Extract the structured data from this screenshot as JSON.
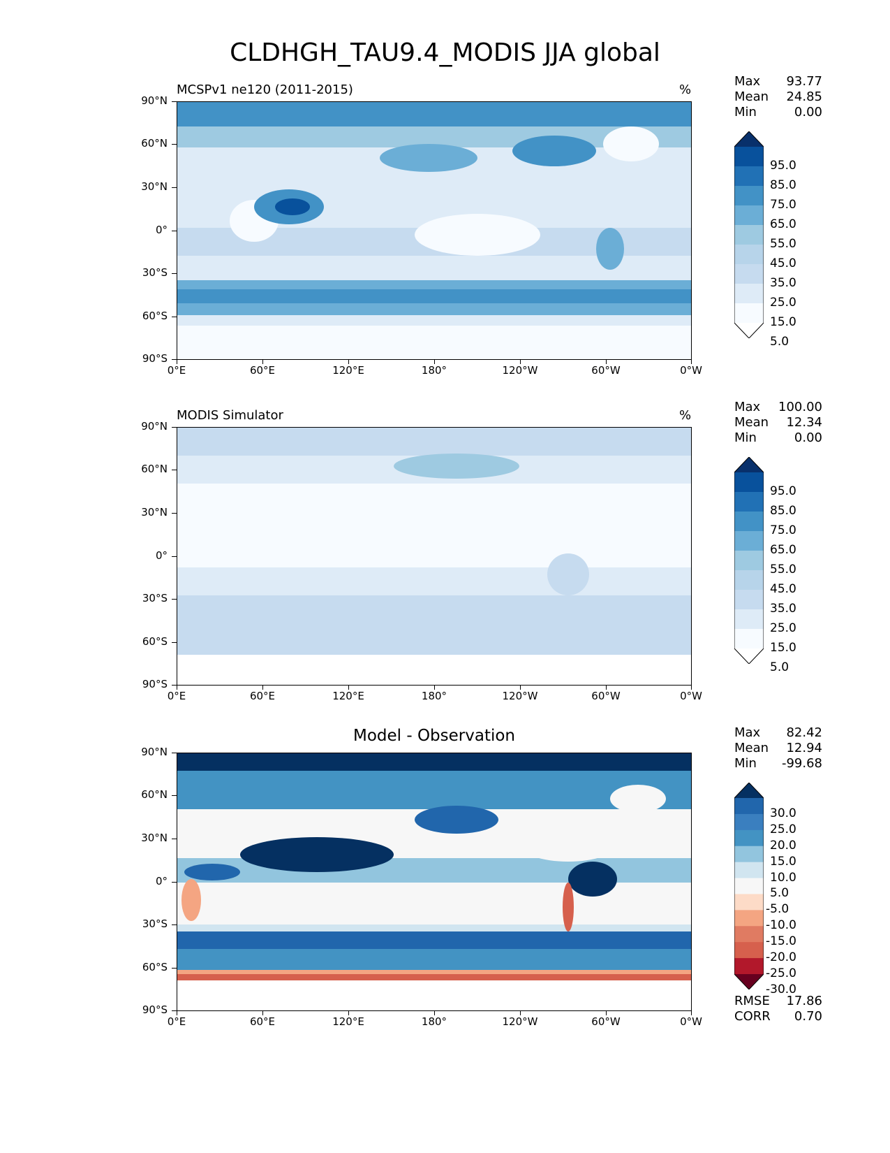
{
  "figure": {
    "title": "CLDHGH_TAU9.4_MODIS JJA global"
  },
  "axes": {
    "lat_labels": [
      "90°N",
      "60°N",
      "30°N",
      "0°",
      "30°S",
      "60°S",
      "90°S"
    ],
    "lon_labels": [
      "0°E",
      "60°E",
      "120°E",
      "180°",
      "120°W",
      "60°W",
      "0°W"
    ]
  },
  "panels": [
    {
      "title": "MCSPv1 ne120 (2011-2015)",
      "units": "%",
      "stats": {
        "max_label": "Max",
        "max": "93.77",
        "mean_label": "Mean",
        "mean": "24.85",
        "min_label": "Min",
        "min": "0.00"
      },
      "colorbar": {
        "levels": [
          "95.0",
          "85.0",
          "75.0",
          "65.0",
          "55.0",
          "45.0",
          "35.0",
          "25.0",
          "15.0",
          "5.0"
        ],
        "colors": [
          "#08306b",
          "#08519c",
          "#2171b5",
          "#4292c6",
          "#6baed6",
          "#9ecae1",
          "#b7d4ea",
          "#c6dbef",
          "#deebf7",
          "#f7fbff",
          "#ffffff"
        ]
      }
    },
    {
      "title": "MODIS Simulator",
      "units": "%",
      "stats": {
        "max_label": "Max",
        "max": "100.00",
        "mean_label": "Mean",
        "mean": "12.34",
        "min_label": "Min",
        "min": "0.00"
      },
      "colorbar": {
        "levels": [
          "95.0",
          "85.0",
          "75.0",
          "65.0",
          "55.0",
          "45.0",
          "35.0",
          "25.0",
          "15.0",
          "5.0"
        ],
        "colors": [
          "#08306b",
          "#08519c",
          "#2171b5",
          "#4292c6",
          "#6baed6",
          "#9ecae1",
          "#b7d4ea",
          "#c6dbef",
          "#deebf7",
          "#f7fbff",
          "#ffffff"
        ]
      }
    },
    {
      "title": "Model - Observation",
      "units": "",
      "stats": {
        "max_label": "Max",
        "max": "82.42",
        "mean_label": "Mean",
        "mean": "12.94",
        "min_label": "Min",
        "min": "-99.68"
      },
      "colorbar": {
        "levels": [
          "30.0",
          "25.0",
          "20.0",
          "15.0",
          "10.0",
          "5.0",
          "-5.0",
          "-10.0",
          "-15.0",
          "-20.0",
          "-25.0",
          "-30.0"
        ],
        "colors": [
          "#053061",
          "#2166ac",
          "#3a7fbf",
          "#4393c3",
          "#92c5de",
          "#d1e5f0",
          "#f7f7f7",
          "#fddbc7",
          "#f4a582",
          "#e07b62",
          "#d6604d",
          "#b2182b",
          "#67001f"
        ]
      },
      "extra_stats": {
        "rmse_label": "RMSE",
        "rmse": "17.86",
        "corr_label": "CORR",
        "corr": "0.70"
      }
    }
  ]
}
